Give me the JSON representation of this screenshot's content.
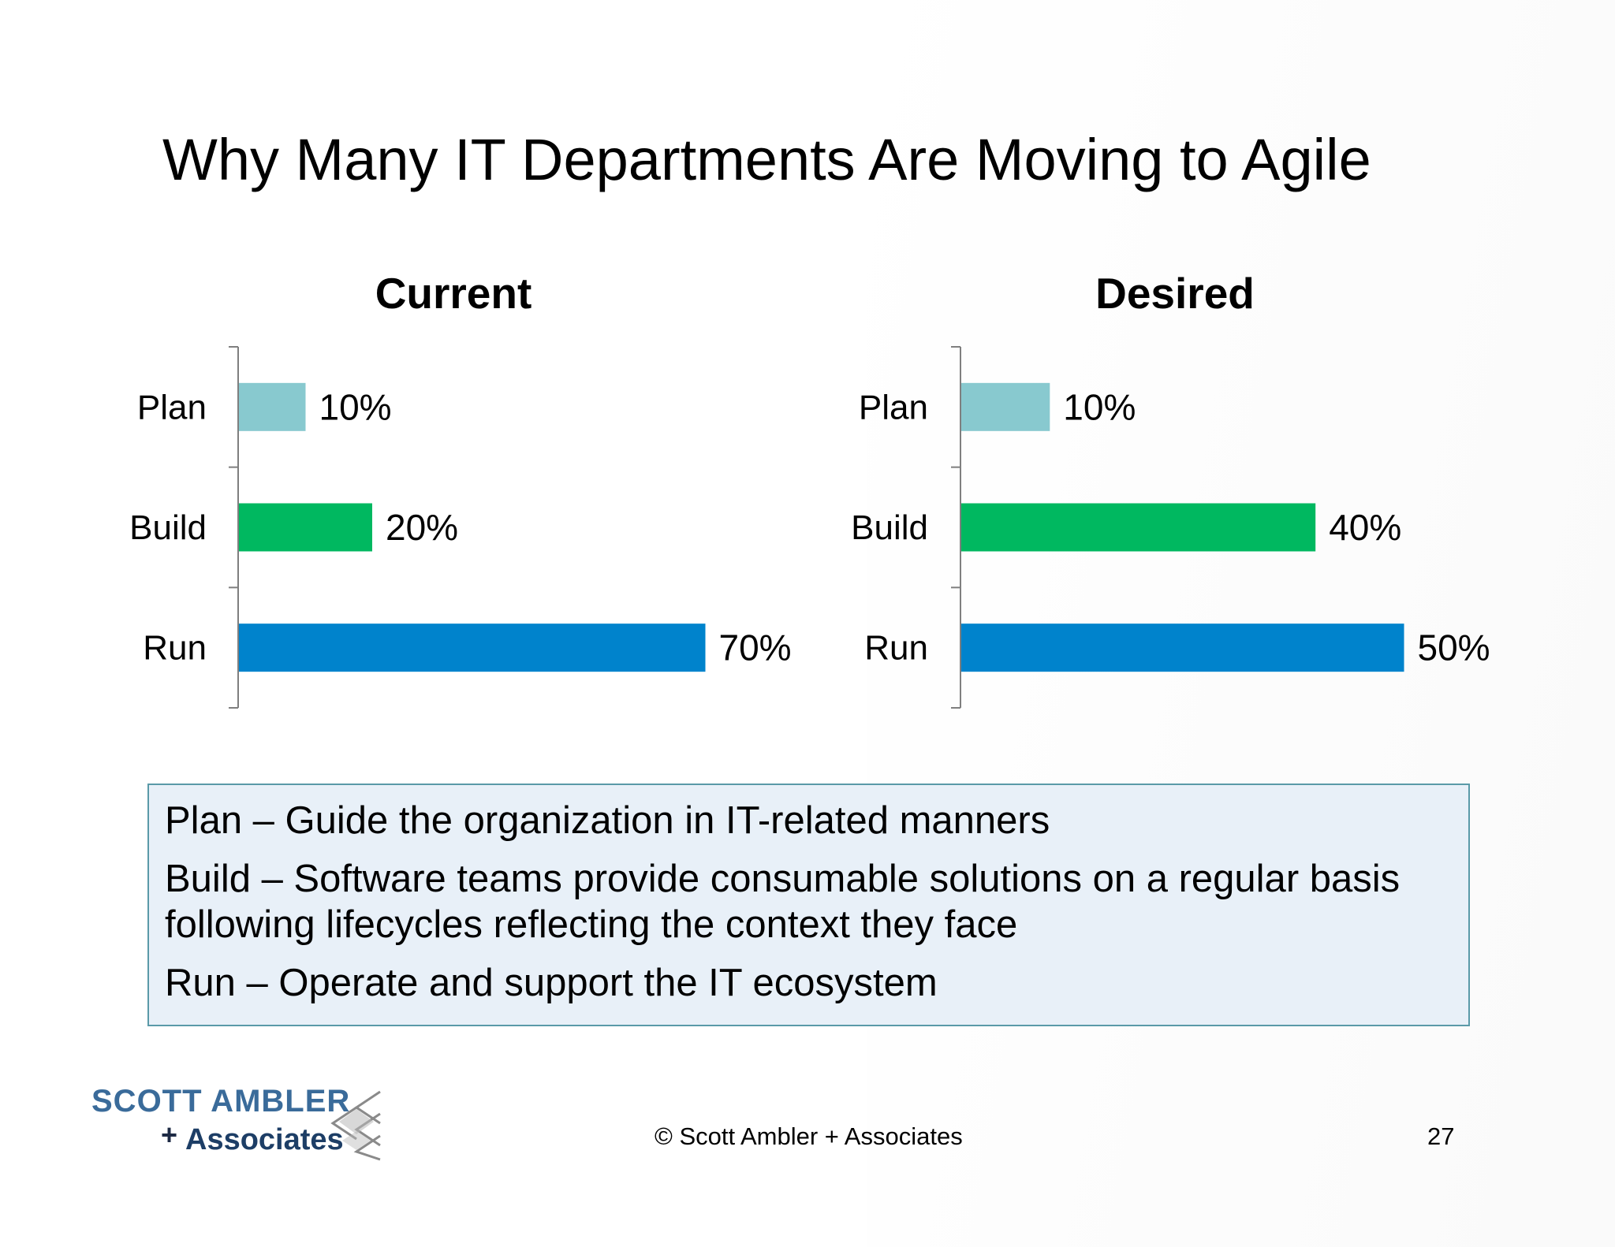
{
  "slide": {
    "title": "Why Many IT Departments Are Moving to Agile",
    "definitions": [
      "Plan – Guide the organization in IT-related manners",
      "Build – Software teams provide consumable solutions on a regular basis following lifecycles reflecting the context they face",
      "Run – Operate and support the IT ecosystem"
    ],
    "logo": {
      "line1": "SCOTT AMBLER",
      "plus": "+",
      "line2": "Associates"
    },
    "footer": "© Scott Ambler + Associates",
    "page_number": "27"
  },
  "colors": {
    "plan": "#88c9cf",
    "build": "#00b860",
    "run": "#0083cc",
    "axis": "#7f7f7f"
  },
  "chart_data": [
    {
      "type": "bar",
      "orientation": "horizontal",
      "title": "Current",
      "categories": [
        "Plan",
        "Build",
        "Run"
      ],
      "values": [
        10,
        20,
        70
      ],
      "value_labels": [
        "10%",
        "20%",
        "70%"
      ],
      "unit": "%",
      "xlim": [
        0,
        70
      ],
      "grid": false
    },
    {
      "type": "bar",
      "orientation": "horizontal",
      "title": "Desired",
      "categories": [
        "Plan",
        "Build",
        "Run"
      ],
      "values": [
        10,
        40,
        50
      ],
      "value_labels": [
        "10%",
        "40%",
        "50%"
      ],
      "unit": "%",
      "xlim": [
        0,
        50
      ],
      "grid": false
    }
  ]
}
